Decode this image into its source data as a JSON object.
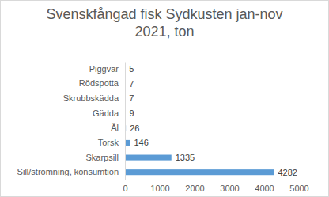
{
  "chart_data": {
    "type": "bar",
    "orientation": "horizontal",
    "title": "Svenskfångad fisk Sydkusten jan-nov 2021, ton",
    "categories": [
      "Piggvar",
      "Rödspotta",
      "Skrubbskädda",
      "Gädda",
      "Ål",
      "Torsk",
      "Skarpsill",
      "Sill/strömning, konsumtion"
    ],
    "values": [
      5,
      7,
      7,
      9,
      26,
      146,
      1335,
      4282
    ],
    "color": "#5b9bd5",
    "xlim": [
      0,
      5000
    ],
    "xticks": [
      0,
      1000,
      2000,
      3000,
      4000,
      5000
    ],
    "grid": false,
    "data_labels": true
  }
}
